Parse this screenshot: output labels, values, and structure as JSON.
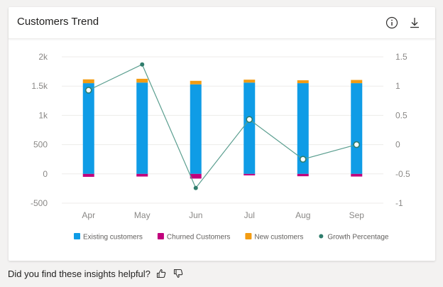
{
  "card": {
    "title": "Customers Trend",
    "info_icon": "info-icon",
    "download_icon": "download-icon"
  },
  "footer": {
    "question": "Did you find these insights helpful?",
    "thumbs_up_icon": "thumbs-up-icon",
    "thumbs_down_icon": "thumbs-down-icon"
  },
  "chart_data": {
    "type": "bar",
    "stacked": true,
    "categories": [
      "Apr",
      "May",
      "Jun",
      "Jul",
      "Aug",
      "Sep"
    ],
    "series": [
      {
        "name": "Existing customers",
        "kind": "bar",
        "axis": "left",
        "color": "#0f9ce6",
        "values": [
          1550,
          1560,
          1530,
          1560,
          1550,
          1550
        ]
      },
      {
        "name": "Churned Customers",
        "kind": "bar",
        "axis": "left",
        "color": "#c1007c",
        "values": [
          -50,
          -45,
          -80,
          -25,
          -40,
          -45
        ]
      },
      {
        "name": "New customers",
        "kind": "bar",
        "axis": "left",
        "color": "#f39c12",
        "values": [
          65,
          65,
          60,
          50,
          50,
          55
        ]
      },
      {
        "name": "Growth Percentage",
        "kind": "line",
        "axis": "right",
        "color": "#2f7d6c",
        "values": [
          0.93,
          1.37,
          -0.74,
          0.43,
          -0.25,
          0.0
        ]
      }
    ],
    "y_left": {
      "min": -500,
      "max": 2000,
      "ticks": [
        -500,
        0,
        500,
        1000,
        1500,
        2000
      ],
      "tick_labels": [
        "-500",
        "0",
        "500",
        "1k",
        "1.5k",
        "2k"
      ]
    },
    "y_right": {
      "min": -1,
      "max": 1.5,
      "ticks": [
        -1,
        -0.5,
        0,
        0.5,
        1,
        1.5
      ],
      "tick_labels": [
        "-1",
        "-0.5",
        "0",
        "0.5",
        "1",
        "1.5"
      ]
    },
    "grid": true,
    "legend_position": "bottom"
  }
}
